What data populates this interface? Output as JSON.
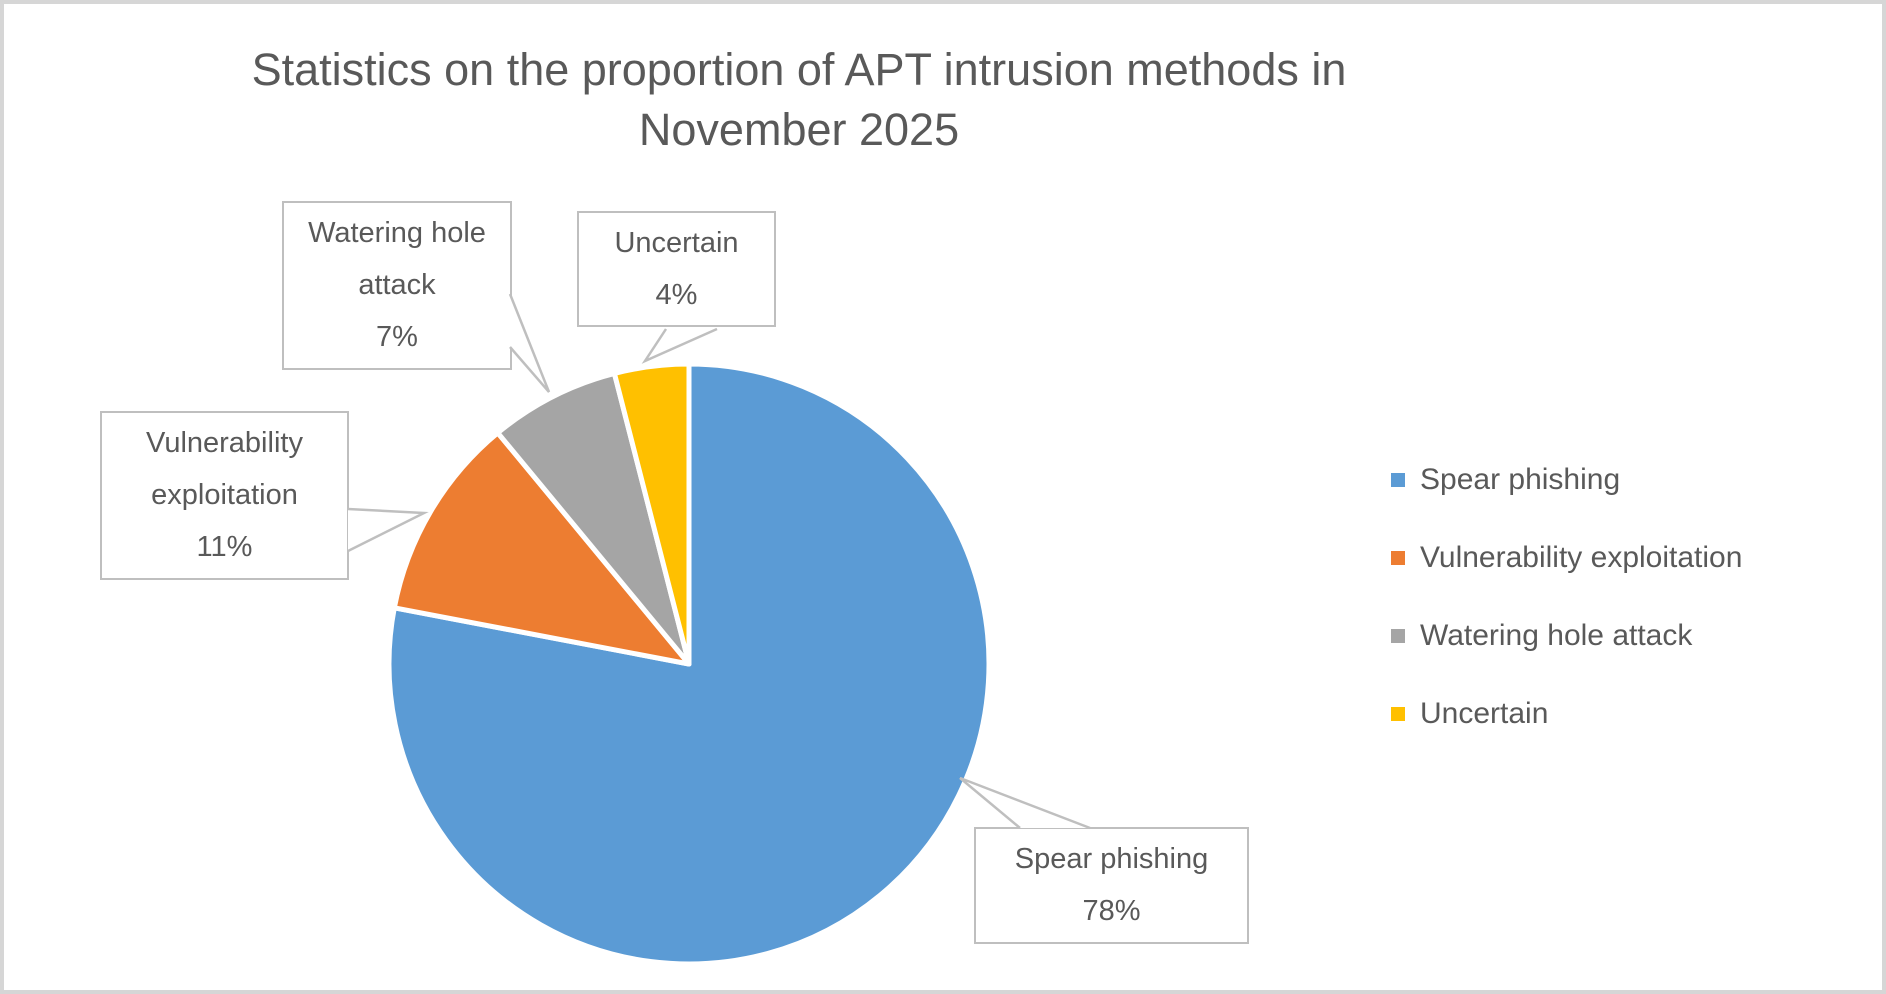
{
  "frame": {
    "background": "#ffffff",
    "border_color": "#d6d6d6"
  },
  "title": {
    "text": "Statistics on the proportion of APT intrusion methods in November 2025",
    "line1": "Statistics on the proportion of APT intrusion methods in",
    "line2": "November 2025",
    "color": "#595959"
  },
  "chart_data": {
    "type": "pie",
    "title": "Statistics on the proportion of APT intrusion methods in November 2025",
    "categories": [
      "Spear phishing",
      "Vulnerability exploitation",
      "Watering hole attack",
      "Uncertain"
    ],
    "values": [
      78,
      11,
      7,
      4
    ],
    "unit": "%",
    "colors": [
      "#5b9bd5",
      "#ed7d31",
      "#a5a5a5",
      "#ffc000"
    ],
    "start_angle_deg": 0,
    "direction": "clockwise",
    "slice_gap_color": "#ffffff",
    "legend_position": "right",
    "data_labels": [
      {
        "label": "Spear phishing",
        "value": "78%"
      },
      {
        "label": "Vulnerability exploitation",
        "value": "11%"
      },
      {
        "label": "Watering hole attack",
        "value": "7%"
      },
      {
        "label": "Uncertain",
        "value": "4%"
      }
    ]
  },
  "legend": {
    "text_color": "#595959",
    "items": [
      {
        "label": "Spear phishing",
        "color": "#5b9bd5"
      },
      {
        "label": "Vulnerability exploitation",
        "color": "#ed7d31"
      },
      {
        "label": "Watering hole attack",
        "color": "#a5a5a5"
      },
      {
        "label": "Uncertain",
        "color": "#ffc000"
      }
    ]
  },
  "callouts": [
    {
      "label": "Watering hole attack",
      "value": "7%"
    },
    {
      "label": "Uncertain",
      "value": "4%"
    },
    {
      "label": "Vulnerability exploitation",
      "value": "11%"
    },
    {
      "label": "Spear phishing",
      "value": "78%"
    }
  ]
}
